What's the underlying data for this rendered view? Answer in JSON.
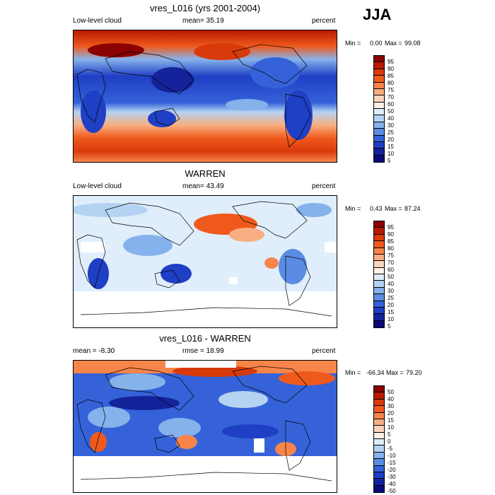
{
  "season": "JJA",
  "units": "percent",
  "panels": [
    {
      "title": "vres_L016 (yrs 2001-2004)",
      "left_label": "Low-level cloud",
      "center_label": "mean=  35.19",
      "right_label": "percent",
      "min_label": "Min =",
      "min_value": "0.00",
      "max_label": "Max =",
      "max_value": "99.08",
      "colorbar_labels": [
        "95",
        "90",
        "85",
        "80",
        "75",
        "70",
        "60",
        "50",
        "40",
        "30",
        "25",
        "20",
        "15",
        "10",
        "5"
      ]
    },
    {
      "title": "WARREN",
      "left_label": "Low-level cloud",
      "center_label": "mean=  43.49",
      "right_label": "percent",
      "min_label": "Min =",
      "min_value": "0.43",
      "max_label": "Max =",
      "max_value": "87.24",
      "colorbar_labels": [
        "95",
        "90",
        "85",
        "80",
        "75",
        "70",
        "60",
        "50",
        "40",
        "30",
        "25",
        "20",
        "15",
        "10",
        "5"
      ]
    },
    {
      "title": "vres_L016 - WARREN",
      "left_label": "mean =  -8.30",
      "center_label": "rmse =  18.99",
      "right_label": "percent",
      "min_label": "Min =",
      "min_value": "-66.34",
      "max_label": "Max =",
      "max_value": "79.20",
      "colorbar_labels": [
        "50",
        "40",
        "30",
        "20",
        "15",
        "10",
        "5",
        "0",
        "-5",
        "-10",
        "-15",
        "-20",
        "-30",
        "-40",
        "-50"
      ]
    }
  ],
  "colorbar_colors": [
    "#8b0000",
    "#b81a00",
    "#d93a0b",
    "#ef5a1c",
    "#f7854a",
    "#f8ae82",
    "#fad5bd",
    "#fdf1e6",
    "#dfeefa",
    "#b4d3f2",
    "#86b2ec",
    "#5a8ce3",
    "#3562d8",
    "#1f3fc4",
    "#14239a",
    "#0a0a78"
  ]
}
